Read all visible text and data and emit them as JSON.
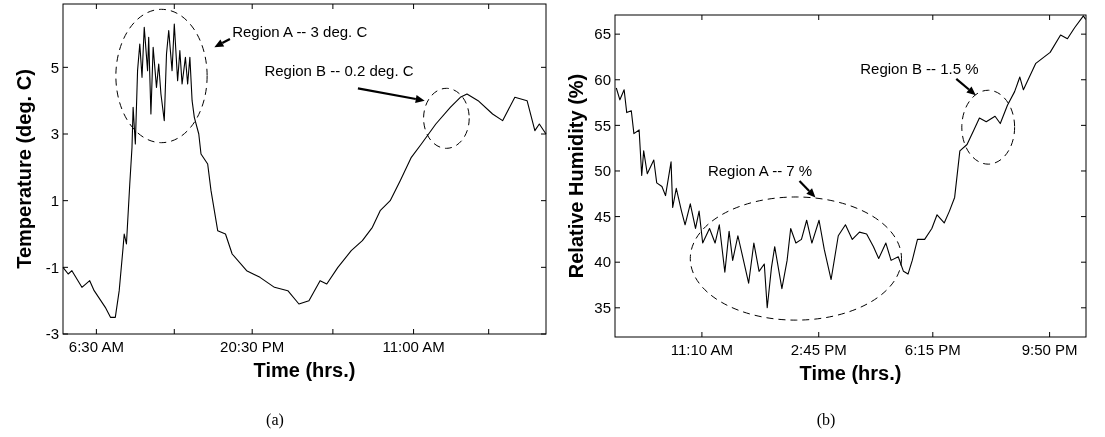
{
  "chart_data": [
    {
      "type": "line",
      "xlabel": "Time (hrs.)",
      "ylabel": "Temperature (deg. C)",
      "xlim": [
        "2000-01-01T03:30",
        "2000-01-02T22:54"
      ],
      "xticks": [
        {
          "value": "2000-01-01T06:30",
          "label": "6:30 AM"
        },
        {
          "value": "2000-01-01T13:30",
          "label": null
        },
        {
          "value": "2000-01-01T20:30",
          "label": "20:30 PM"
        },
        {
          "value": "2000-01-02T03:45",
          "label": null
        },
        {
          "value": "2000-01-02T11:00",
          "label": "11:00 AM"
        },
        {
          "value": "2000-01-02T17:45",
          "label": null
        }
      ],
      "ylim": [
        -3,
        6.9
      ],
      "yticks": [
        -3,
        -1,
        1,
        3,
        5
      ],
      "grid": false,
      "series": [
        {
          "color": "#000000",
          "x": [
            "2000-01-01T03:30",
            "2000-01-01T03:58",
            "2000-01-01T04:18",
            "2000-01-01T05:12",
            "2000-01-01T05:54",
            "2000-01-01T06:18",
            "2000-01-01T07:18",
            "2000-01-01T07:46",
            "2000-01-01T08:12",
            "2000-01-01T08:33",
            "2000-01-01T08:54",
            "2000-01-01T09:00",
            "2000-01-01T09:12",
            "2000-01-01T09:30",
            "2000-01-01T09:42",
            "2000-01-01T09:48",
            "2000-01-01T10:00",
            "2000-01-01T10:12",
            "2000-01-01T10:24",
            "2000-01-01T10:36",
            "2000-01-01T10:48",
            "2000-01-01T11:06",
            "2000-01-01T11:12",
            "2000-01-01T11:24",
            "2000-01-01T11:36",
            "2000-01-01T11:54",
            "2000-01-01T12:06",
            "2000-01-01T12:18",
            "2000-01-01T12:36",
            "2000-01-01T12:48",
            "2000-01-01T13:00",
            "2000-01-01T13:18",
            "2000-01-01T13:30",
            "2000-01-01T13:48",
            "2000-01-01T14:00",
            "2000-01-01T14:12",
            "2000-01-01T14:30",
            "2000-01-01T14:42",
            "2000-01-01T14:54",
            "2000-01-01T15:06",
            "2000-01-01T15:18",
            "2000-01-01T15:42",
            "2000-01-01T15:54",
            "2000-01-01T16:30",
            "2000-01-01T16:48",
            "2000-01-01T17:24",
            "2000-01-01T18:06",
            "2000-01-01T18:42",
            "2000-01-01T20:00",
            "2000-01-01T21:12",
            "2000-01-01T22:30",
            "2000-01-01T23:42",
            "2000-01-02T00:42",
            "2000-01-02T01:36",
            "2000-01-02T02:36",
            "2000-01-02T03:12",
            "2000-01-02T04:12",
            "2000-01-02T05:24",
            "2000-01-02T06:24",
            "2000-01-02T07:18",
            "2000-01-02T08:00",
            "2000-01-02T08:54",
            "2000-01-02T09:48",
            "2000-01-02T10:48",
            "2000-01-02T11:42",
            "2000-01-02T13:00",
            "2000-01-02T14:18",
            "2000-01-02T15:12",
            "2000-01-02T15:48",
            "2000-01-02T16:48",
            "2000-01-02T18:06",
            "2000-01-02T19:00",
            "2000-01-02T20:06",
            "2000-01-02T21:12",
            "2000-01-02T21:54",
            "2000-01-02T22:18",
            "2000-01-02T22:54"
          ],
          "values": [
            -1.0,
            -1.2,
            -1.1,
            -1.6,
            -1.4,
            -1.7,
            -2.2,
            -2.5,
            -2.5,
            -1.7,
            -0.4,
            0.0,
            -0.3,
            1.5,
            2.6,
            3.8,
            2.7,
            4.9,
            5.7,
            4.7,
            6.2,
            4.9,
            5.9,
            3.6,
            5.6,
            4.4,
            5.1,
            4.2,
            3.4,
            5.4,
            6.1,
            4.9,
            6.3,
            4.6,
            5.5,
            4.5,
            5.3,
            4.5,
            5.3,
            4.0,
            3.5,
            3.0,
            2.4,
            2.1,
            1.3,
            0.1,
            0.0,
            -0.6,
            -1.1,
            -1.3,
            -1.6,
            -1.7,
            -2.1,
            -2.0,
            -1.4,
            -1.5,
            -1.0,
            -0.5,
            -0.2,
            0.2,
            0.7,
            1.0,
            1.6,
            2.3,
            2.7,
            3.3,
            3.8,
            4.1,
            4.2,
            4.0,
            3.6,
            3.4,
            4.1,
            4.0,
            3.1,
            3.3,
            3.0
          ]
        }
      ],
      "annotations": [
        "Region A -- 3 deg. C",
        "Region B -- 0.2 deg. C",
        "(a)"
      ]
    },
    {
      "type": "line",
      "xlabel": "Time (hrs.)",
      "ylabel": "Relative Humidity (%)",
      "xlim": [
        8.5,
        22.95
      ],
      "xticks": [
        {
          "value": 11.1667,
          "label": "11:10 AM"
        },
        {
          "value": 14.75,
          "label": "2:45 PM"
        },
        {
          "value": 18.25,
          "label": "6:15 PM"
        },
        {
          "value": 21.8333,
          "label": "9:50 PM"
        }
      ],
      "ylim": [
        31.8,
        67.1
      ],
      "yticks": [
        35,
        40,
        45,
        50,
        55,
        60,
        65
      ],
      "grid": false,
      "series": [
        {
          "color": "#000000",
          "x": [
            8.54,
            8.65,
            8.78,
            8.86,
            9.0,
            9.08,
            9.24,
            9.32,
            9.38,
            9.49,
            9.69,
            9.78,
            9.94,
            10.05,
            10.22,
            10.27,
            10.38,
            10.54,
            10.65,
            10.81,
            10.97,
            11.08,
            11.19,
            11.4,
            11.57,
            11.7,
            11.87,
            12.0,
            12.11,
            12.27,
            12.43,
            12.6,
            12.76,
            12.92,
            13.08,
            13.17,
            13.3,
            13.4,
            13.62,
            13.78,
            13.89,
            14.05,
            14.22,
            14.38,
            14.54,
            14.76,
            14.92,
            15.13,
            15.35,
            15.57,
            15.78,
            16.0,
            16.22,
            16.43,
            16.59,
            16.81,
            16.97,
            17.19,
            17.35,
            17.49,
            17.62,
            17.78,
            18.0,
            18.22,
            18.38,
            18.6,
            18.76,
            18.92,
            19.08,
            19.3,
            19.51,
            19.68,
            19.89,
            20.16,
            20.32,
            20.54,
            20.76,
            20.92,
            21.03,
            21.41,
            21.85,
            22.17,
            22.38,
            22.6,
            22.87,
            22.94
          ],
          "values": [
            59.1,
            57.8,
            58.9,
            56.4,
            56.6,
            54.1,
            54.5,
            49.5,
            52.2,
            49.7,
            51.2,
            48.7,
            48.3,
            47.3,
            51.0,
            46.0,
            48.1,
            45.6,
            44.1,
            46.4,
            43.7,
            45.6,
            42.1,
            43.7,
            42.1,
            44.1,
            38.9,
            43.4,
            40.2,
            42.9,
            40.4,
            37.7,
            42.1,
            39.0,
            39.8,
            35.0,
            39.4,
            41.7,
            37.1,
            40.2,
            43.7,
            42.1,
            42.5,
            44.6,
            42.1,
            44.6,
            41.4,
            38.1,
            42.9,
            44.1,
            42.5,
            43.3,
            43.1,
            41.7,
            40.4,
            42.1,
            40.2,
            40.6,
            39.0,
            38.7,
            40.2,
            42.5,
            42.5,
            43.7,
            45.2,
            44.3,
            45.6,
            47.1,
            52.2,
            52.9,
            54.5,
            55.8,
            55.4,
            56.0,
            55.2,
            57.2,
            58.7,
            60.3,
            58.9,
            61.8,
            63.0,
            64.9,
            64.5,
            65.7,
            67.0,
            66.6
          ]
        }
      ],
      "annotations": [
        "Region A -- 7 %",
        "Region B -- 1.5 %",
        "(b)"
      ]
    }
  ]
}
